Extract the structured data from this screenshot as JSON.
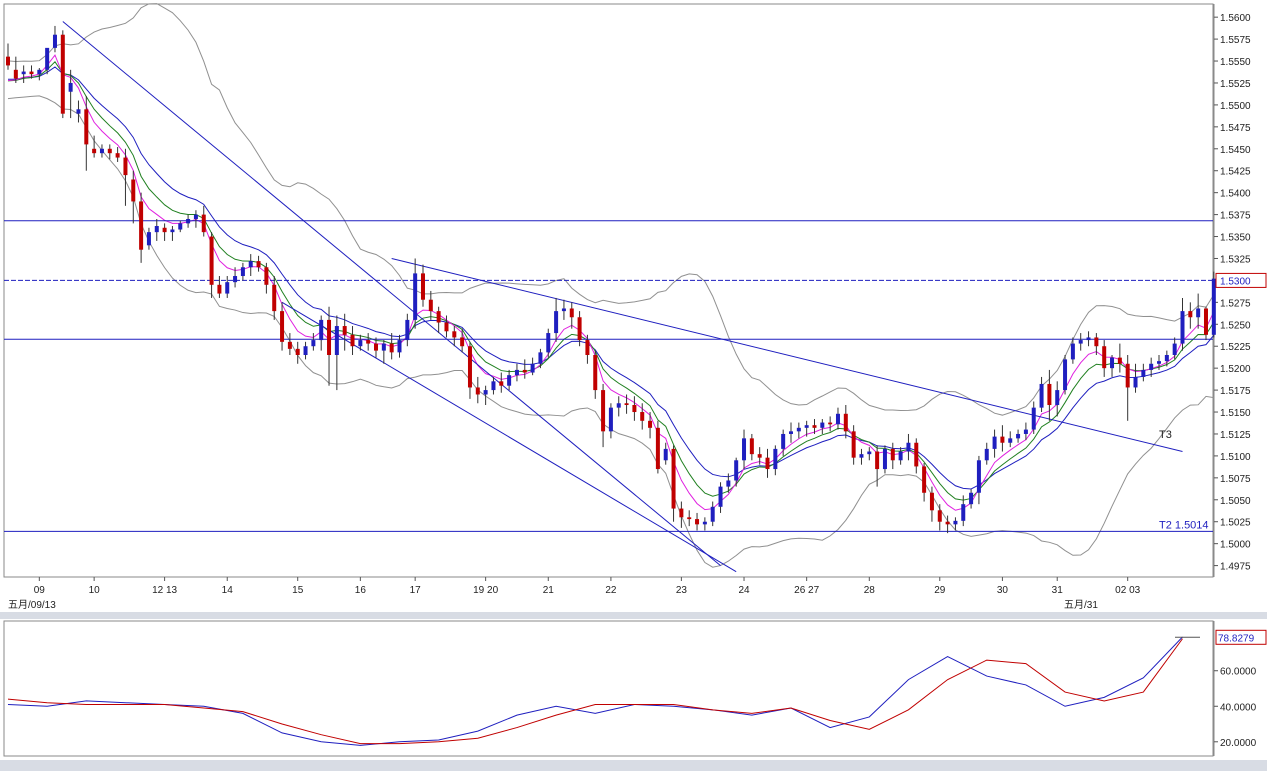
{
  "colors": {
    "bull": "#1f1fbf",
    "bear": "#c00000",
    "bb": "#909090",
    "ma_fast": "#e020e0",
    "ma_mid": "#208020",
    "ma_slow": "#1f1fbf",
    "trend": "#1f1fbf",
    "stoch_k": "#1f1fbf",
    "stoch_d": "#c00000"
  },
  "chart_data": [
    {
      "type": "candlestick",
      "title": "",
      "y_ticks": [
        1.4975,
        1.5,
        1.5025,
        1.505,
        1.5075,
        1.51,
        1.5125,
        1.515,
        1.5175,
        1.52,
        1.5225,
        1.525,
        1.5275,
        1.53,
        1.5325,
        1.535,
        1.5375,
        1.54,
        1.5425,
        1.545,
        1.5475,
        1.55,
        1.5525,
        1.555,
        1.5575,
        1.56
      ],
      "y_tick_labels": [
        "1.4975",
        "1.5000",
        "1.5025",
        "1.5050",
        "1.5075",
        "1.5100",
        "1.5125",
        "1.5150",
        "1.5175",
        "1.5200",
        "1.5225",
        "1.5250",
        "1.5275",
        "1.5300",
        "1.5325",
        "1.5350",
        "1.5375",
        "1.5400",
        "1.5425",
        "1.5450",
        "1.5475",
        "1.5500",
        "1.5525",
        "1.5550",
        "1.5575",
        "1.5600"
      ],
      "ylim": [
        1.4962,
        1.5615
      ],
      "x_tick_labels": [
        "09",
        "10",
        "12 13",
        "14",
        "15",
        "16",
        "17",
        "19 20",
        "21",
        "22",
        "23",
        "24",
        "26 27",
        "28",
        "29",
        "30",
        "31",
        "02 03"
      ],
      "x_tick_bars": [
        4,
        11,
        20,
        28,
        37,
        45,
        52,
        61,
        69,
        77,
        86,
        94,
        102,
        110,
        119,
        127,
        134,
        143
      ],
      "date_left": "五月/09/13",
      "date_right": "五月/31",
      "current_price": 1.53,
      "current_price_label": "1.5300",
      "horizontal_levels": [
        1.5368,
        1.5233,
        1.5014
      ],
      "label_t2": "T2 1.5014",
      "label_t3": "T3",
      "trendlines": [
        {
          "x1": 7,
          "y1": 1.5595,
          "x2": 91,
          "y2": 1.4975
        },
        {
          "x1": 49,
          "y1": 1.5325,
          "x2": 150,
          "y2": 1.5105
        }
      ],
      "candles": [
        [
          1.5555,
          1.557,
          1.5545,
          1.554
        ],
        [
          1.554,
          1.5555,
          1.553,
          1.5525
        ],
        [
          1.5535,
          1.5545,
          1.5538,
          1.5525
        ],
        [
          1.5538,
          1.5545,
          1.5535,
          1.553
        ],
        [
          1.5535,
          1.5542,
          1.554,
          1.5528
        ],
        [
          1.554,
          1.5555,
          1.5565,
          1.5535
        ],
        [
          1.5565,
          1.559,
          1.558,
          1.556
        ],
        [
          1.558,
          1.5585,
          1.549,
          1.5485
        ],
        [
          1.5515,
          1.554,
          1.5525,
          1.5485
        ],
        [
          1.549,
          1.5505,
          1.5495,
          1.548
        ],
        [
          1.5495,
          1.551,
          1.5455,
          1.5425
        ],
        [
          1.545,
          1.5465,
          1.5445,
          1.544
        ],
        [
          1.5445,
          1.5455,
          1.545,
          1.544
        ],
        [
          1.545,
          1.5455,
          1.5445,
          1.5438
        ],
        [
          1.5445,
          1.5452,
          1.544,
          1.5435
        ],
        [
          1.544,
          1.545,
          1.542,
          1.5385
        ],
        [
          1.5415,
          1.5425,
          1.539,
          1.5365
        ],
        [
          1.539,
          1.54,
          1.5335,
          1.532
        ],
        [
          1.534,
          1.536,
          1.5355,
          1.5335
        ],
        [
          1.5355,
          1.537,
          1.5362,
          1.5345
        ],
        [
          1.536,
          1.5365,
          1.5355,
          1.5345
        ],
        [
          1.5355,
          1.5362,
          1.5358,
          1.5345
        ],
        [
          1.5358,
          1.5368,
          1.5365,
          1.5355
        ],
        [
          1.5365,
          1.5375,
          1.537,
          1.536
        ],
        [
          1.537,
          1.538,
          1.5375,
          1.536
        ],
        [
          1.5375,
          1.5385,
          1.5355,
          1.535
        ],
        [
          1.535,
          1.5355,
          1.5295,
          1.528
        ],
        [
          1.5295,
          1.5305,
          1.5285,
          1.528
        ],
        [
          1.5285,
          1.5305,
          1.5298,
          1.528
        ],
        [
          1.5298,
          1.5315,
          1.5305,
          1.5292
        ],
        [
          1.5305,
          1.532,
          1.5315,
          1.53
        ],
        [
          1.5315,
          1.533,
          1.5322,
          1.5305
        ],
        [
          1.5322,
          1.5328,
          1.5315,
          1.531
        ],
        [
          1.5315,
          1.532,
          1.5295,
          1.5285
        ],
        [
          1.5295,
          1.5305,
          1.5265,
          1.5255
        ],
        [
          1.5265,
          1.5275,
          1.523,
          1.522
        ],
        [
          1.523,
          1.524,
          1.5222,
          1.5215
        ],
        [
          1.5222,
          1.523,
          1.5215,
          1.5205
        ],
        [
          1.5215,
          1.523,
          1.5225,
          1.521
        ],
        [
          1.5225,
          1.524,
          1.5232,
          1.522
        ],
        [
          1.5232,
          1.526,
          1.5255,
          1.522
        ],
        [
          1.5255,
          1.527,
          1.5215,
          1.518
        ],
        [
          1.5215,
          1.526,
          1.5248,
          1.5175
        ],
        [
          1.5248,
          1.5262,
          1.5238,
          1.522
        ],
        [
          1.5238,
          1.5248,
          1.5225,
          1.5215
        ],
        [
          1.5225,
          1.5238,
          1.5232,
          1.522
        ],
        [
          1.5232,
          1.524,
          1.5228,
          1.522
        ],
        [
          1.5228,
          1.5235,
          1.522,
          1.5212
        ],
        [
          1.522,
          1.5232,
          1.5228,
          1.5205
        ],
        [
          1.5228,
          1.524,
          1.5218,
          1.521
        ],
        [
          1.5218,
          1.5238,
          1.5232,
          1.5212
        ],
        [
          1.5232,
          1.5262,
          1.5255,
          1.5225
        ],
        [
          1.5255,
          1.5325,
          1.5308,
          1.5245
        ],
        [
          1.5308,
          1.5318,
          1.5278,
          1.527
        ],
        [
          1.5278,
          1.5288,
          1.5265,
          1.5255
        ],
        [
          1.5265,
          1.527,
          1.5252,
          1.524
        ],
        [
          1.5252,
          1.526,
          1.5242,
          1.5235
        ],
        [
          1.5242,
          1.5248,
          1.5235,
          1.5225
        ],
        [
          1.5235,
          1.5245,
          1.5225,
          1.5218
        ],
        [
          1.5225,
          1.523,
          1.5178,
          1.5165
        ],
        [
          1.5178,
          1.519,
          1.517,
          1.516
        ],
        [
          1.517,
          1.518,
          1.5175,
          1.5158
        ],
        [
          1.5175,
          1.519,
          1.5185,
          1.517
        ],
        [
          1.5185,
          1.5195,
          1.518,
          1.5172
        ],
        [
          1.518,
          1.5198,
          1.5192,
          1.5175
        ],
        [
          1.5192,
          1.5205,
          1.5198,
          1.5185
        ],
        [
          1.5198,
          1.521,
          1.5195,
          1.5188
        ],
        [
          1.5195,
          1.5212,
          1.5205,
          1.5192
        ],
        [
          1.5205,
          1.5222,
          1.5218,
          1.52
        ],
        [
          1.5218,
          1.5245,
          1.524,
          1.5212
        ],
        [
          1.524,
          1.528,
          1.5265,
          1.523
        ],
        [
          1.5265,
          1.5278,
          1.5268,
          1.5255
        ],
        [
          1.5268,
          1.5275,
          1.5258,
          1.5245
        ],
        [
          1.5258,
          1.5265,
          1.5232,
          1.5225
        ],
        [
          1.5232,
          1.5238,
          1.5215,
          1.5205
        ],
        [
          1.5215,
          1.522,
          1.5175,
          1.5165
        ],
        [
          1.5175,
          1.5182,
          1.5128,
          1.511
        ],
        [
          1.5128,
          1.516,
          1.5155,
          1.512
        ],
        [
          1.5155,
          1.5168,
          1.516,
          1.5145
        ],
        [
          1.516,
          1.517,
          1.5158,
          1.5148
        ],
        [
          1.5158,
          1.5168,
          1.515,
          1.514
        ],
        [
          1.515,
          1.516,
          1.514,
          1.513
        ],
        [
          1.514,
          1.515,
          1.5132,
          1.512
        ],
        [
          1.5132,
          1.514,
          1.5085,
          1.508
        ],
        [
          1.5095,
          1.5115,
          1.5108,
          1.509
        ],
        [
          1.5108,
          1.5112,
          1.504,
          1.5025
        ],
        [
          1.504,
          1.5048,
          1.503,
          1.5018
        ],
        [
          1.503,
          1.5038,
          1.5028,
          1.502
        ],
        [
          1.5028,
          1.5035,
          1.5022,
          1.5015
        ],
        [
          1.5022,
          1.503,
          1.5025,
          1.5015
        ],
        [
          1.5025,
          1.5048,
          1.5042,
          1.502
        ],
        [
          1.5042,
          1.507,
          1.5065,
          1.5035
        ],
        [
          1.5065,
          1.508,
          1.5072,
          1.5058
        ],
        [
          1.5072,
          1.5098,
          1.5095,
          1.5065
        ],
        [
          1.5095,
          1.513,
          1.512,
          1.5085
        ],
        [
          1.512,
          1.5125,
          1.5102,
          1.5095
        ],
        [
          1.5102,
          1.511,
          1.5098,
          1.509
        ],
        [
          1.5098,
          1.5108,
          1.5085,
          1.5075
        ],
        [
          1.5085,
          1.5112,
          1.5108,
          1.5078
        ],
        [
          1.5108,
          1.513,
          1.5125,
          1.51
        ],
        [
          1.5125,
          1.5138,
          1.5128,
          1.5115
        ],
        [
          1.5128,
          1.5138,
          1.5132,
          1.512
        ],
        [
          1.5132,
          1.514,
          1.5135,
          1.5122
        ],
        [
          1.5135,
          1.5142,
          1.5132,
          1.5125
        ],
        [
          1.5132,
          1.5142,
          1.5138,
          1.5125
        ],
        [
          1.5138,
          1.5145,
          1.5136,
          1.5128
        ],
        [
          1.5136,
          1.5155,
          1.5148,
          1.513
        ],
        [
          1.5148,
          1.5158,
          1.5128,
          1.512
        ],
        [
          1.5128,
          1.5135,
          1.5098,
          1.509
        ],
        [
          1.5098,
          1.5108,
          1.5102,
          1.509
        ],
        [
          1.5102,
          1.511,
          1.5105,
          1.5095
        ],
        [
          1.5105,
          1.5112,
          1.5085,
          1.5065
        ],
        [
          1.5085,
          1.5112,
          1.5108,
          1.508
        ],
        [
          1.5108,
          1.5115,
          1.5095,
          1.5085
        ],
        [
          1.5095,
          1.511,
          1.5105,
          1.509
        ],
        [
          1.5105,
          1.5125,
          1.5115,
          1.5095
        ],
        [
          1.5115,
          1.512,
          1.5088,
          1.508
        ],
        [
          1.5088,
          1.5092,
          1.5058,
          1.5048
        ],
        [
          1.5058,
          1.5065,
          1.5038,
          1.5025
        ],
        [
          1.5038,
          1.5045,
          1.5025,
          1.5015
        ],
        [
          1.5025,
          1.5032,
          1.5022,
          1.5012
        ],
        [
          1.5022,
          1.503,
          1.5026,
          1.5015
        ],
        [
          1.5026,
          1.5055,
          1.5045,
          1.502
        ],
        [
          1.5045,
          1.5062,
          1.5058,
          1.504
        ],
        [
          1.5058,
          1.51,
          1.5095,
          1.5045
        ],
        [
          1.5095,
          1.5115,
          1.5108,
          1.509
        ],
        [
          1.5108,
          1.513,
          1.5122,
          1.5098
        ],
        [
          1.5122,
          1.5135,
          1.5115,
          1.5105
        ],
        [
          1.5115,
          1.5128,
          1.512,
          1.511
        ],
        [
          1.512,
          1.513,
          1.5125,
          1.5115
        ],
        [
          1.5125,
          1.5138,
          1.513,
          1.5118
        ],
        [
          1.513,
          1.5162,
          1.5155,
          1.5125
        ],
        [
          1.5155,
          1.519,
          1.5182,
          1.515
        ],
        [
          1.5182,
          1.5198,
          1.5158,
          1.514
        ],
        [
          1.5158,
          1.5185,
          1.5175,
          1.5145
        ],
        [
          1.5175,
          1.5215,
          1.521,
          1.517
        ],
        [
          1.521,
          1.5235,
          1.5228,
          1.5205
        ],
        [
          1.5228,
          1.524,
          1.5232,
          1.522
        ],
        [
          1.5232,
          1.5242,
          1.5235,
          1.5225
        ],
        [
          1.5235,
          1.524,
          1.5225,
          1.5215
        ],
        [
          1.5225,
          1.5232,
          1.52,
          1.519
        ],
        [
          1.52,
          1.5215,
          1.5212,
          1.519
        ],
        [
          1.5212,
          1.5228,
          1.5205,
          1.5195
        ],
        [
          1.5205,
          1.5215,
          1.5178,
          1.514
        ],
        [
          1.5178,
          1.5205,
          1.519,
          1.5172
        ],
        [
          1.519,
          1.5205,
          1.5198,
          1.5185
        ],
        [
          1.5198,
          1.5212,
          1.5205,
          1.519
        ],
        [
          1.5205,
          1.5215,
          1.5208,
          1.5198
        ],
        [
          1.5208,
          1.522,
          1.5215,
          1.5202
        ],
        [
          1.5215,
          1.5235,
          1.5228,
          1.521
        ],
        [
          1.5228,
          1.528,
          1.5265,
          1.522
        ],
        [
          1.5265,
          1.5275,
          1.5258,
          1.5245
        ],
        [
          1.5258,
          1.5285,
          1.5268,
          1.5245
        ],
        [
          1.5268,
          1.527,
          1.5238,
          1.5232
        ],
        [
          1.5238,
          1.531,
          1.5302,
          1.5235
        ]
      ]
    },
    {
      "type": "line",
      "title": "",
      "current_value": 78.8279,
      "current_value_label": "78.8279",
      "y_ticks": [
        20,
        40,
        60
      ],
      "y_tick_labels": [
        "20.0000",
        "40.0000",
        "60.0000"
      ],
      "ylim": [
        12,
        88
      ],
      "x_index": [
        0,
        5,
        10,
        15,
        20,
        25,
        30,
        35,
        40,
        45,
        50,
        55,
        60,
        65,
        70,
        75,
        80,
        85,
        90,
        95,
        100,
        105,
        110,
        115,
        120,
        125,
        130,
        135,
        140,
        145,
        150
      ],
      "series": [
        {
          "values": [
            41,
            40,
            43,
            42,
            41,
            40,
            36,
            25,
            20,
            18,
            20,
            21,
            26,
            35,
            40,
            36,
            41,
            40,
            38,
            35,
            39,
            28,
            34,
            55,
            68,
            57,
            52,
            40,
            45,
            56,
            79
          ]
        },
        {
          "values": [
            44,
            42,
            41,
            41,
            41,
            39,
            37,
            30,
            24,
            19,
            19,
            20,
            22,
            28,
            35,
            41,
            41,
            41,
            38,
            36,
            39,
            32,
            27,
            38,
            55,
            66,
            64,
            48,
            43,
            48,
            78
          ]
        }
      ]
    }
  ]
}
